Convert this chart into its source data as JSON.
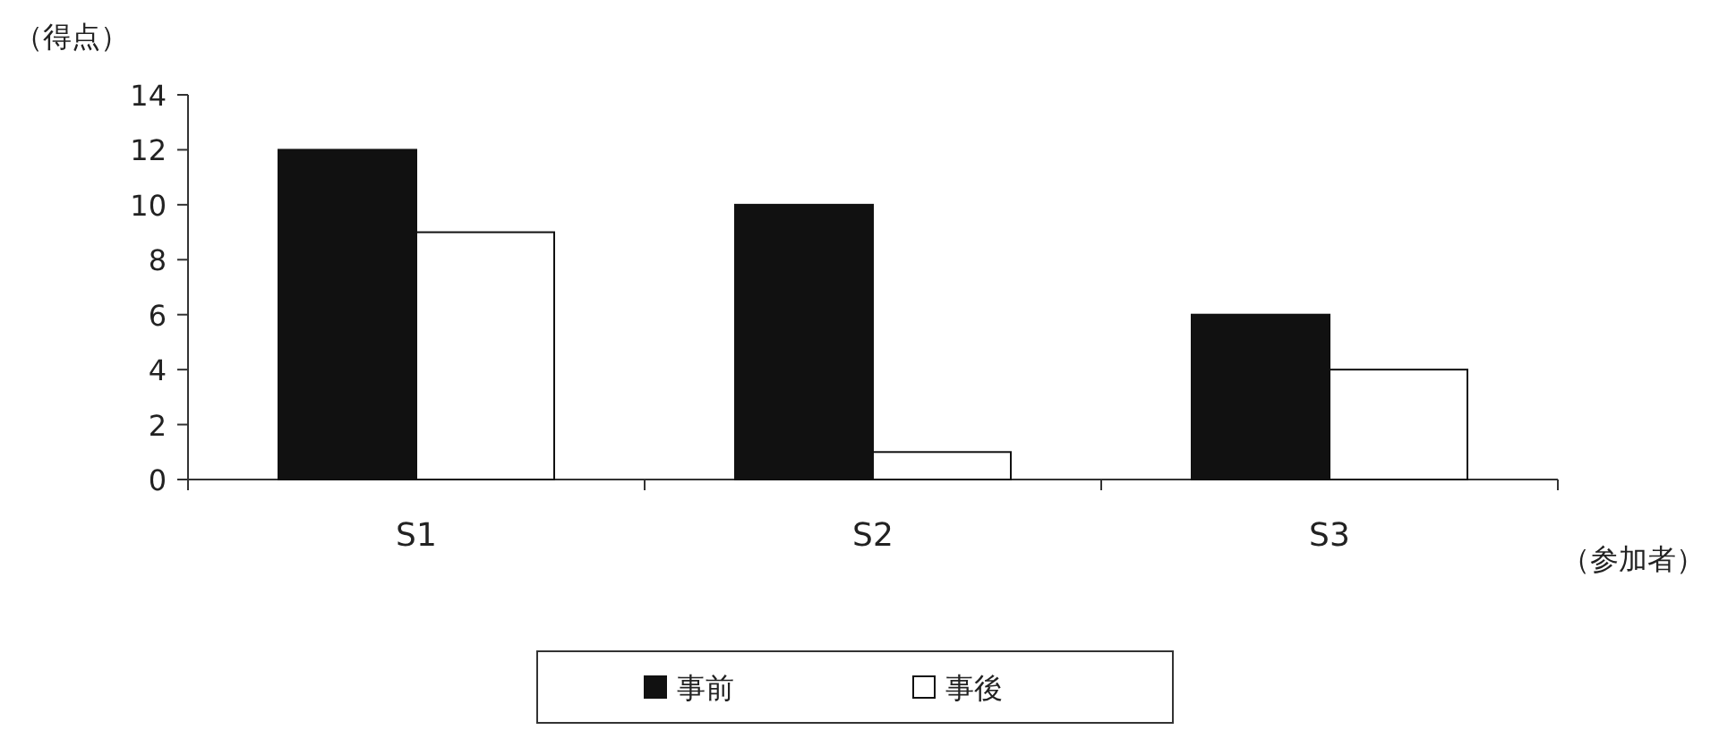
{
  "chart_data": {
    "type": "bar",
    "ylabel": "（得点）",
    "xlabel": "（参加者）",
    "categories": [
      "S1",
      "S2",
      "S3"
    ],
    "series": [
      {
        "name": "事前",
        "color": "#111111",
        "values": [
          12,
          10,
          6
        ]
      },
      {
        "name": "事後",
        "color": "#ffffff",
        "values": [
          9,
          1,
          4
        ]
      }
    ],
    "ylim": [
      0,
      14
    ],
    "yticks": [
      0,
      2,
      4,
      6,
      8,
      10,
      12,
      14
    ],
    "legend": "bottom"
  }
}
